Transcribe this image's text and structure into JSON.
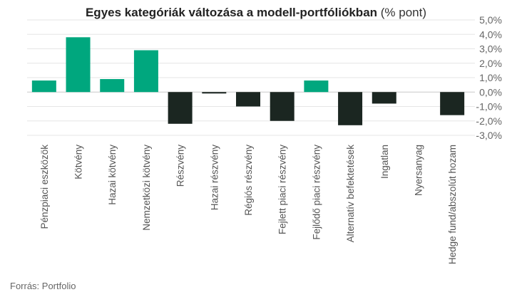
{
  "chart_data": {
    "type": "bar",
    "title": "Egyes kategóriák változása a modell-portfóliókban",
    "title_suffix": "(% pont)",
    "categories": [
      "Pénzpiaci eszközök",
      "Kötvény",
      "Hazai kötvény",
      "Nemzetközi kötvény",
      "Részvény",
      "Hazai részvény",
      "Régiós részvény",
      "Fejlett piaci részvény",
      "Fejlődő piaci részvény",
      "Alternatív befektetések",
      "Ingatlan",
      "Nyersanyag",
      "Hedge fund/abszolút hozam"
    ],
    "values": [
      0.8,
      3.8,
      0.9,
      2.9,
      -2.2,
      -0.1,
      -1.0,
      -2.0,
      0.8,
      -2.3,
      -0.8,
      0.0,
      -1.6
    ],
    "y_ticks": [
      "5,0%",
      "4,0%",
      "3,0%",
      "2,0%",
      "1,0%",
      "0,0%",
      "-1,0%",
      "-2,0%",
      "-3,0%"
    ],
    "ylim": [
      -3,
      5
    ],
    "y_axis_position": "right",
    "grid": true,
    "colors": {
      "positive": "#00a77e",
      "negative": "#1b2621",
      "grid": "#e6e6e6",
      "zero_line": "#c8c8c8"
    },
    "source": "Forrás: Portfolio"
  }
}
